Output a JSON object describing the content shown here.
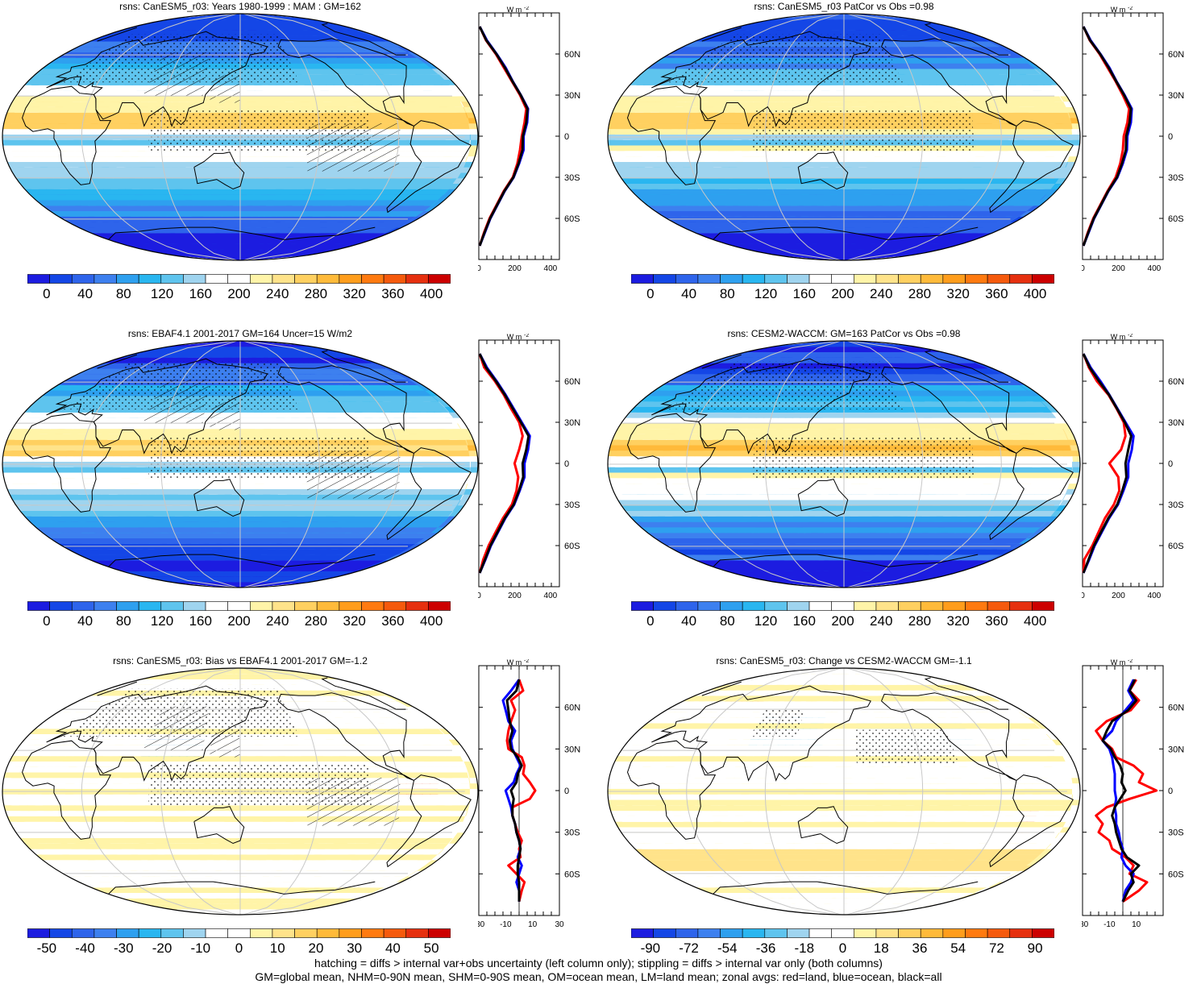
{
  "panels": [
    {
      "id": "p1",
      "title": "rsns: CanESM5_r03: Years 1980-1999 : MAM : GM=162",
      "field": "abs",
      "seed": 1,
      "hatch": true,
      "colorbar": {
        "labels": [
          "0",
          "40",
          "80",
          "120",
          "160",
          "200",
          "240",
          "280",
          "320",
          "360",
          "400"
        ]
      },
      "zonal": {
        "units": "W m",
        "units_sup": "-2",
        "lat_ticks": [
          "60N",
          "30N",
          "0",
          "30S",
          "60S"
        ],
        "x_ticks": [
          "0",
          "200",
          "400"
        ],
        "xlim": [
          0,
          450
        ],
        "lat": [
          80,
          70,
          60,
          50,
          40,
          30,
          20,
          10,
          0,
          -10,
          -20,
          -30,
          -40,
          -50,
          -60,
          -70,
          -80
        ],
        "land": [
          5,
          40,
          95,
          140,
          185,
          230,
          265,
          255,
          240,
          230,
          215,
          190,
          140,
          100,
          60,
          30,
          5
        ],
        "ocean": [
          5,
          45,
          100,
          150,
          190,
          235,
          275,
          270,
          250,
          250,
          225,
          195,
          145,
          105,
          65,
          35,
          5
        ],
        "all": [
          5,
          42,
          98,
          146,
          188,
          234,
          272,
          265,
          246,
          244,
          222,
          193,
          143,
          103,
          63,
          33,
          5
        ]
      }
    },
    {
      "id": "p2",
      "title": "rsns: CanESM5_r03 PatCor vs Obs =0.98",
      "field": "abs",
      "seed": 2,
      "hatch": false,
      "colorbar": {
        "labels": [
          "0",
          "40",
          "80",
          "120",
          "160",
          "200",
          "240",
          "280",
          "320",
          "360",
          "400"
        ]
      },
      "zonal": {
        "units": "W m",
        "units_sup": "-2",
        "lat_ticks": [
          "60N",
          "30N",
          "0",
          "30S",
          "60S"
        ],
        "x_ticks": [
          "0",
          "200",
          "400"
        ],
        "xlim": [
          0,
          450
        ],
        "lat": [
          80,
          70,
          60,
          50,
          40,
          30,
          20,
          10,
          0,
          -10,
          -20,
          -30,
          -40,
          -50,
          -60,
          -70,
          -80
        ],
        "land": [
          5,
          40,
          95,
          140,
          185,
          225,
          260,
          250,
          230,
          225,
          210,
          185,
          140,
          100,
          60,
          30,
          5
        ],
        "ocean": [
          5,
          45,
          100,
          150,
          190,
          235,
          275,
          270,
          250,
          248,
          225,
          195,
          145,
          105,
          65,
          35,
          5
        ],
        "all": [
          5,
          42,
          98,
          146,
          188,
          232,
          270,
          263,
          244,
          242,
          220,
          192,
          143,
          103,
          63,
          33,
          5
        ]
      }
    },
    {
      "id": "p3",
      "title": "rsns: EBAF4.1 2001-2017 GM=164 Uncer=15 W/m2",
      "field": "abs",
      "seed": 3,
      "hatch": true,
      "colorbar": {
        "labels": [
          "0",
          "40",
          "80",
          "120",
          "160",
          "200",
          "240",
          "280",
          "320",
          "360",
          "400"
        ]
      },
      "zonal": {
        "units": "W m",
        "units_sup": "-2",
        "lat_ticks": [
          "60N",
          "30N",
          "0",
          "30S",
          "60S"
        ],
        "x_ticks": [
          "0",
          "200",
          "400"
        ],
        "xlim": [
          0,
          450
        ],
        "lat": [
          80,
          70,
          60,
          50,
          40,
          30,
          20,
          10,
          0,
          -10,
          -20,
          -30,
          -40,
          -50,
          -60,
          -70,
          -80
        ],
        "land": [
          5,
          30,
          90,
          140,
          180,
          225,
          245,
          225,
          200,
          220,
          210,
          185,
          135,
          95,
          55,
          25,
          5
        ],
        "ocean": [
          5,
          45,
          100,
          150,
          195,
          240,
          285,
          275,
          255,
          255,
          228,
          198,
          148,
          108,
          68,
          38,
          5
        ],
        "all": [
          5,
          40,
          96,
          146,
          190,
          235,
          278,
          265,
          245,
          248,
          224,
          195,
          145,
          105,
          65,
          35,
          5
        ]
      }
    },
    {
      "id": "p4",
      "title": "rsns: CESM2-WACCM: GM=163 PatCor vs Obs =0.98",
      "field": "abs",
      "seed": 4,
      "hatch": false,
      "colorbar": {
        "labels": [
          "0",
          "40",
          "80",
          "120",
          "160",
          "200",
          "240",
          "280",
          "320",
          "360",
          "400"
        ]
      },
      "zonal": {
        "units": "W m",
        "units_sup": "-2",
        "lat_ticks": [
          "60N",
          "30N",
          "0",
          "30S",
          "60S"
        ],
        "x_ticks": [
          "0",
          "200",
          "400"
        ],
        "xlim": [
          0,
          450
        ],
        "lat": [
          80,
          70,
          60,
          50,
          40,
          30,
          20,
          10,
          0,
          -10,
          -20,
          -30,
          -40,
          -50,
          -60,
          -70,
          -80
        ],
        "land": [
          5,
          35,
          80,
          145,
          190,
          230,
          240,
          215,
          150,
          200,
          205,
          175,
          125,
          90,
          55,
          10,
          5
        ],
        "ocean": [
          5,
          45,
          100,
          150,
          195,
          240,
          285,
          275,
          255,
          255,
          228,
          198,
          148,
          108,
          68,
          38,
          5
        ],
        "all": [
          5,
          40,
          92,
          148,
          192,
          236,
          272,
          255,
          240,
          245,
          222,
          194,
          144,
          104,
          64,
          34,
          5
        ]
      }
    },
    {
      "id": "p5",
      "title": "rsns: CanESM5_r03: Bias vs EBAF4.1 2001-2017 GM=-1.2",
      "field": "diff",
      "seed": 5,
      "hatch": true,
      "colorbar": {
        "labels": [
          "-50",
          "-40",
          "-30",
          "-20",
          "-10",
          "0",
          "10",
          "20",
          "30",
          "40",
          "50"
        ]
      },
      "zonal": {
        "units": "W m",
        "units_sup": "-2",
        "lat_ticks": [
          "60N",
          "30N",
          "0",
          "30S",
          "60S"
        ],
        "x_ticks": [
          "-30",
          "-10",
          "10",
          "30"
        ],
        "xlim": [
          -30,
          30
        ],
        "lat": [
          80,
          72,
          65,
          58,
          50,
          43,
          36,
          30,
          24,
          18,
          12,
          6,
          0,
          -6,
          -12,
          -18,
          -24,
          -30,
          -36,
          -42,
          -48,
          -54,
          -60,
          -66,
          -72,
          -80
        ],
        "land": [
          0,
          3,
          -6,
          -3,
          -6,
          -8,
          -9,
          -8,
          2,
          4,
          3,
          8,
          12,
          8,
          -5,
          -5,
          -3,
          -1,
          2,
          0,
          1,
          -8,
          -2,
          4,
          2,
          0
        ],
        "ocean": [
          0,
          -6,
          -12,
          -10,
          -8,
          -3,
          -6,
          -5,
          -2,
          1,
          -2,
          -4,
          -10,
          -8,
          -6,
          -5,
          -3,
          -2,
          0,
          1,
          -1,
          2,
          0,
          -2,
          0,
          0
        ],
        "all": [
          0,
          -2,
          -9,
          -8,
          -7,
          -5,
          -7,
          -6,
          -1,
          2,
          -1,
          -2,
          -6,
          -4,
          -5,
          -5,
          -3,
          -2,
          0,
          1,
          0,
          -1,
          -1,
          0,
          0,
          0
        ]
      }
    },
    {
      "id": "p6",
      "title": "rsns: CanESM5_r03: Change vs CESM2-WACCM GM=-1.1",
      "field": "change",
      "seed": 6,
      "hatch": false,
      "colorbar": {
        "labels": [
          "-90",
          "-72",
          "-54",
          "-36",
          "-18",
          "0",
          "18",
          "36",
          "54",
          "72",
          "90"
        ]
      },
      "zonal": {
        "units": "W m",
        "units_sup": "-2",
        "lat_ticks": [
          "60N",
          "30N",
          "0",
          "30S",
          "60S"
        ],
        "x_ticks": [
          "-30",
          "-10",
          "10"
        ],
        "xlim": [
          -30,
          30
        ],
        "lat": [
          80,
          72,
          65,
          58,
          50,
          43,
          36,
          30,
          24,
          18,
          12,
          6,
          0,
          -6,
          -12,
          -18,
          -24,
          -30,
          -36,
          -42,
          -48,
          -54,
          -60,
          -66,
          -72,
          -80
        ],
        "land": [
          10,
          5,
          12,
          6,
          -12,
          -20,
          -15,
          -8,
          -5,
          8,
          15,
          12,
          25,
          5,
          -12,
          -20,
          -15,
          -18,
          -10,
          -8,
          2,
          8,
          5,
          18,
          12,
          0
        ],
        "ocean": [
          8,
          4,
          8,
          2,
          -5,
          -8,
          -15,
          -10,
          -8,
          -7,
          -6,
          -6,
          -6,
          -5,
          -6,
          -5,
          -5,
          -3,
          -2,
          0,
          -1,
          2,
          8,
          6,
          2,
          0
        ],
        "all": [
          9,
          5,
          10,
          4,
          -8,
          -12,
          -15,
          -9,
          -6,
          -2,
          0,
          -1,
          2,
          -2,
          -6,
          -8,
          -6,
          -5,
          -3,
          -1,
          3,
          12,
          6,
          8,
          4,
          0
        ]
      }
    }
  ],
  "footer": {
    "line1": "hatching = diffs > internal var+obs uncertainty (left column only); stippling = diffs > internal var only (both columns)",
    "line2": "GM=global mean, NHM=0-90N mean, SHM=0-90S mean, OM=ocean mean, LM=land mean; zonal avgs: red=land, blue=ocean, black=all"
  },
  "colors": {
    "land_line": "#ff0000",
    "ocean_line": "#0000ff",
    "all_line": "#000000",
    "abs_palette": [
      "#1c1ce0",
      "#1446e6",
      "#2e64eb",
      "#3d80ef",
      "#2ea0ef",
      "#29b6f0",
      "#5ec4ee",
      "#9fd4ef",
      "#ffffff",
      "#ffffff",
      "#fff4a8",
      "#ffe38a",
      "#ffd060",
      "#ffba3a",
      "#ff9d1c",
      "#ff7a10",
      "#f55a0d",
      "#e6300f",
      "#cc0000"
    ],
    "diff_palette": [
      "#1c1ce0",
      "#1446e6",
      "#2e64eb",
      "#3d80ef",
      "#2ea0ef",
      "#29b6f0",
      "#5ec4ee",
      "#9fd4ef",
      "#ffffff",
      "#ffffff",
      "#fff4a8",
      "#ffe38a",
      "#ffd060",
      "#ffba3a",
      "#ff9d1c",
      "#ff7a10",
      "#f55a0d",
      "#e6300f",
      "#cc0000"
    ]
  }
}
